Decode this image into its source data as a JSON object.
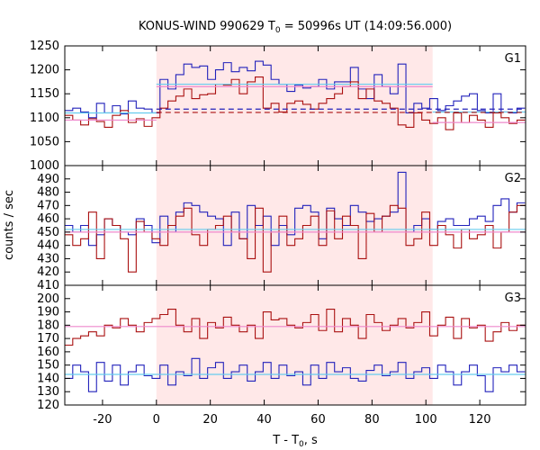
{
  "chart_data": {
    "type": "line",
    "title": "KONUS-WIND 990629 T",
    "title_sub": "0",
    "title_rest": " = 50996s UT (14:09:56.000)",
    "xlabel_main": "T - T",
    "xlabel_sub": "0",
    "xlabel_rest": ", s",
    "ylabel": "counts / sec",
    "xlim": [
      -34,
      137
    ],
    "xticks": [
      -20,
      0,
      20,
      40,
      60,
      80,
      100,
      120
    ],
    "xtick_labels": [
      "-20",
      "0",
      "20",
      "40",
      "60",
      "80",
      "100",
      "120"
    ],
    "highlight_interval": [
      0,
      102.5
    ],
    "bin_width": 2.944,
    "bin_start": -34,
    "colors": {
      "blue": "#2222bb",
      "red": "#aa1111",
      "fit_blue": "#66ccee",
      "fit_red": "#ee88cc",
      "background_shade": "#ffe8e8"
    },
    "panels": [
      {
        "name": "G1",
        "ylim": [
          1000,
          1250
        ],
        "yticks": [
          1000,
          1050,
          1100,
          1150,
          1200,
          1250
        ],
        "ytick_labels": [
          "1000",
          "1050",
          "1100",
          "1150",
          "1200",
          "1250"
        ],
        "fits": {
          "blue": [
            [
              -34,
              0,
              1110
            ],
            [
              0,
              102.5,
              1170
            ],
            [
              102.5,
              137,
              1112
            ]
          ],
          "red": [
            [
              -34,
              0,
              1095
            ],
            [
              0,
              102.5,
              1165
            ],
            [
              102.5,
              137,
              1090
            ]
          ]
        },
        "dashed": {
          "blue": 1118,
          "red": 1111
        },
        "series": [
          {
            "name": "blue",
            "values": [
              1115,
              1120,
              1112,
              1100,
              1130,
              1110,
              1125,
              1108,
              1135,
              1120,
              1118,
              1110,
              1180,
              1160,
              1190,
              1212,
              1205,
              1208,
              1180,
              1200,
              1215,
              1196,
              1205,
              1198,
              1218,
              1210,
              1180,
              1170,
              1155,
              1168,
              1162,
              1165,
              1180,
              1160,
              1175,
              1175,
              1205,
              1160,
              1140,
              1190,
              1165,
              1150,
              1212,
              1110,
              1130,
              1120,
              1140,
              1115,
              1125,
              1135,
              1145,
              1150,
              1115,
              1110,
              1150,
              1112,
              1110,
              1120
            ]
          },
          {
            "name": "red",
            "values": [
              1105,
              1095,
              1085,
              1098,
              1092,
              1080,
              1105,
              1115,
              1090,
              1098,
              1082,
              1100,
              1120,
              1135,
              1145,
              1160,
              1140,
              1148,
              1150,
              1170,
              1168,
              1180,
              1150,
              1175,
              1185,
              1120,
              1130,
              1112,
              1130,
              1135,
              1128,
              1118,
              1130,
              1140,
              1150,
              1165,
              1175,
              1140,
              1160,
              1135,
              1130,
              1120,
              1085,
              1080,
              1110,
              1095,
              1088,
              1100,
              1075,
              1110,
              1090,
              1105,
              1095,
              1080,
              1110,
              1100,
              1088,
              1095
            ]
          }
        ]
      },
      {
        "name": "G2",
        "ylim": [
          410,
          500
        ],
        "yticks": [
          410,
          420,
          430,
          440,
          450,
          460,
          470,
          480,
          490
        ],
        "ytick_labels": [
          "410",
          "420",
          "430",
          "440",
          "450",
          "460",
          "470",
          "480",
          "490"
        ],
        "fits": {
          "blue": [
            [
              -34,
              137,
              452
            ]
          ],
          "red": [
            [
              -34,
              137,
              450
            ]
          ]
        },
        "series": [
          {
            "name": "blue",
            "values": [
              455,
              450,
              455,
              440,
              448,
              460,
              455,
              450,
              448,
              460,
              455,
              442,
              462,
              450,
              465,
              472,
              470,
              465,
              462,
              460,
              440,
              465,
              445,
              470,
              455,
              462,
              440,
              455,
              448,
              468,
              470,
              465,
              445,
              468,
              460,
              455,
              470,
              465,
              458,
              460,
              462,
              465,
              495,
              450,
              455,
              460,
              452,
              458,
              460,
              455,
              455,
              460,
              462,
              458,
              470,
              475,
              465,
              472
            ]
          },
          {
            "name": "red",
            "values": [
              448,
              440,
              445,
              465,
              430,
              460,
              455,
              445,
              420,
              458,
              450,
              445,
              440,
              455,
              462,
              468,
              448,
              440,
              452,
              455,
              462,
              450,
              445,
              430,
              468,
              420,
              450,
              462,
              440,
              445,
              455,
              462,
              440,
              466,
              445,
              462,
              455,
              430,
              464,
              450,
              462,
              470,
              468,
              440,
              445,
              465,
              440,
              455,
              448,
              438,
              452,
              445,
              448,
              455,
              438,
              450,
              465,
              470
            ]
          }
        ]
      },
      {
        "name": "G3",
        "ylim": [
          120,
          210
        ],
        "yticks": [
          120,
          130,
          140,
          150,
          160,
          170,
          180,
          190,
          200
        ],
        "ytick_labels": [
          "120",
          "130",
          "140",
          "150",
          "160",
          "170",
          "180",
          "190",
          "200"
        ],
        "fits": {
          "blue": [
            [
              -34,
              137,
              143
            ]
          ],
          "red": [
            [
              -34,
              137,
              179
            ]
          ]
        },
        "series": [
          {
            "name": "blue",
            "values": [
              140,
              150,
              145,
              130,
              152,
              138,
              150,
              135,
              145,
              150,
              142,
              140,
              150,
              135,
              145,
              142,
              155,
              140,
              148,
              152,
              140,
              145,
              150,
              138,
              145,
              152,
              140,
              150,
              142,
              145,
              135,
              150,
              140,
              152,
              145,
              148,
              140,
              138,
              146,
              150,
              142,
              145,
              152,
              140,
              145,
              148,
              140,
              150,
              145,
              135,
              145,
              150,
              142,
              130,
              148,
              145,
              150,
              145
            ]
          },
          {
            "name": "red",
            "values": [
              165,
              170,
              172,
              175,
              172,
              180,
              178,
              185,
              180,
              175,
              182,
              185,
              188,
              192,
              180,
              175,
              185,
              170,
              182,
              178,
              186,
              180,
              175,
              180,
              170,
              190,
              184,
              185,
              180,
              178,
              182,
              188,
              176,
              192,
              175,
              185,
              180,
              170,
              188,
              182,
              176,
              180,
              185,
              178,
              182,
              190,
              172,
              180,
              186,
              170,
              185,
              178,
              180,
              168,
              175,
              182,
              176,
              180
            ]
          }
        ]
      }
    ]
  }
}
